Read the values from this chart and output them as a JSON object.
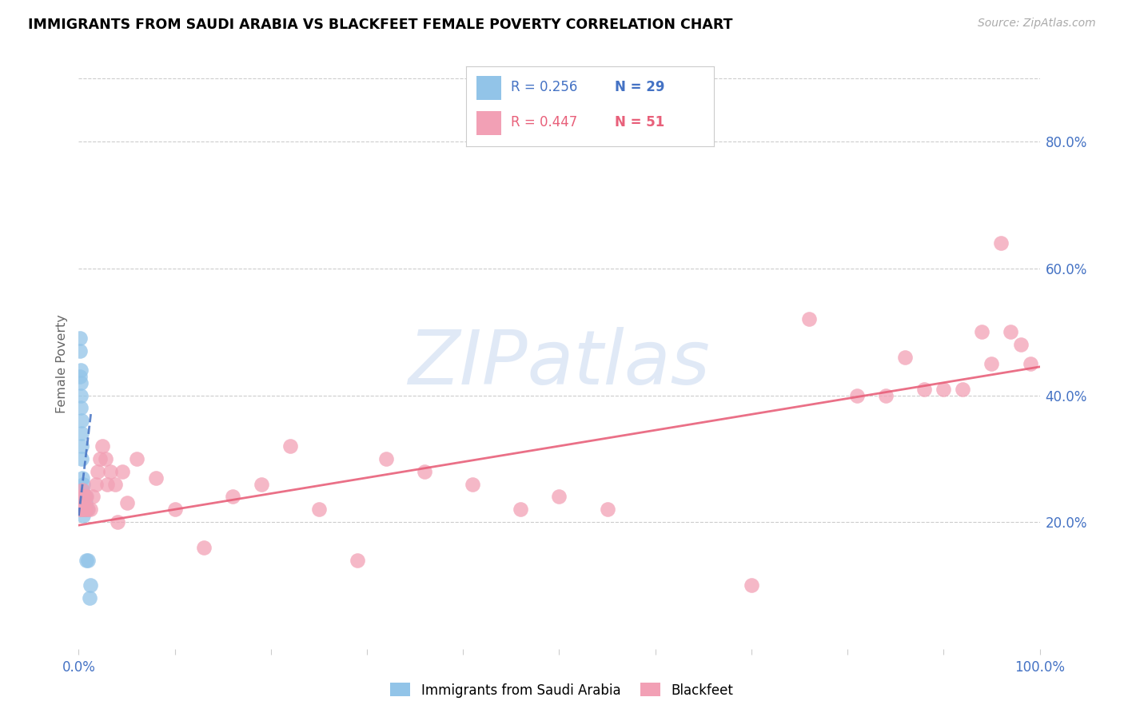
{
  "title": "IMMIGRANTS FROM SAUDI ARABIA VS BLACKFEET FEMALE POVERTY CORRELATION CHART",
  "source": "Source: ZipAtlas.com",
  "ylabel": "Female Poverty",
  "xlim": [
    0.0,
    1.0
  ],
  "ylim": [
    0.0,
    0.9
  ],
  "xtick_positions": [
    0.0,
    0.1,
    0.2,
    0.3,
    0.4,
    0.5,
    0.6,
    0.7,
    0.8,
    0.9,
    1.0
  ],
  "xtick_labels_show": {
    "0.0": "0.0%",
    "1.0": "100.0%"
  },
  "ytick_right_vals": [
    0.2,
    0.4,
    0.6,
    0.8
  ],
  "ytick_right_labels": [
    "20.0%",
    "40.0%",
    "60.0%",
    "80.0%"
  ],
  "color_blue": "#92C4E8",
  "color_pink": "#F2A0B5",
  "color_blue_dark": "#4472C4",
  "color_pink_dark": "#E8607A",
  "color_axis": "#4472C4",
  "grid_color": "#CCCCCC",
  "watermark_text": "ZIPatlas",
  "watermark_color": "#C8D8F0",
  "legend_r1": "R = 0.256",
  "legend_n1": "N = 29",
  "legend_r2": "R = 0.447",
  "legend_n2": "N = 51",
  "saudi_x": [
    0.001,
    0.001,
    0.001,
    0.002,
    0.002,
    0.002,
    0.002,
    0.003,
    0.003,
    0.003,
    0.003,
    0.004,
    0.004,
    0.004,
    0.004,
    0.005,
    0.005,
    0.005,
    0.006,
    0.006,
    0.006,
    0.007,
    0.007,
    0.007,
    0.008,
    0.009,
    0.01,
    0.011,
    0.012
  ],
  "saudi_y": [
    0.47,
    0.49,
    0.43,
    0.38,
    0.4,
    0.42,
    0.44,
    0.3,
    0.32,
    0.34,
    0.36,
    0.22,
    0.24,
    0.25,
    0.27,
    0.21,
    0.23,
    0.26,
    0.22,
    0.23,
    0.24,
    0.22,
    0.23,
    0.24,
    0.14,
    0.22,
    0.14,
    0.08,
    0.1
  ],
  "blackfeet_x": [
    0.001,
    0.002,
    0.003,
    0.004,
    0.005,
    0.006,
    0.007,
    0.008,
    0.01,
    0.012,
    0.015,
    0.018,
    0.02,
    0.022,
    0.025,
    0.028,
    0.03,
    0.033,
    0.038,
    0.04,
    0.045,
    0.05,
    0.06,
    0.08,
    0.1,
    0.13,
    0.16,
    0.19,
    0.22,
    0.25,
    0.29,
    0.32,
    0.36,
    0.41,
    0.46,
    0.5,
    0.55,
    0.7,
    0.76,
    0.81,
    0.84,
    0.86,
    0.88,
    0.9,
    0.92,
    0.94,
    0.95,
    0.96,
    0.97,
    0.98,
    0.99
  ],
  "blackfeet_y": [
    0.22,
    0.24,
    0.22,
    0.25,
    0.22,
    0.24,
    0.22,
    0.24,
    0.22,
    0.22,
    0.24,
    0.26,
    0.28,
    0.3,
    0.32,
    0.3,
    0.26,
    0.28,
    0.26,
    0.2,
    0.28,
    0.23,
    0.3,
    0.27,
    0.22,
    0.16,
    0.24,
    0.26,
    0.32,
    0.22,
    0.14,
    0.3,
    0.28,
    0.26,
    0.22,
    0.24,
    0.22,
    0.1,
    0.52,
    0.4,
    0.4,
    0.46,
    0.41,
    0.41,
    0.41,
    0.5,
    0.45,
    0.64,
    0.5,
    0.48,
    0.45
  ],
  "saudi_trendline_x": [
    0.0,
    0.013
  ],
  "saudi_trendline_y": [
    0.21,
    0.375
  ],
  "blackfeet_trendline_x": [
    0.0,
    1.0
  ],
  "blackfeet_trendline_y": [
    0.195,
    0.445
  ]
}
